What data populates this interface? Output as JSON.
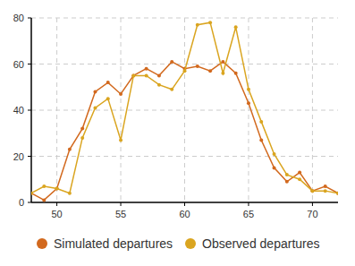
{
  "chart_data": {
    "type": "line",
    "x": [
      48,
      49,
      50,
      51,
      52,
      53,
      54,
      55,
      56,
      57,
      58,
      59,
      60,
      61,
      62,
      63,
      64,
      65,
      66,
      67,
      68,
      69,
      70,
      71,
      72
    ],
    "series": [
      {
        "name": "Simulated departures",
        "color": "#d2691e",
        "marker": "circle",
        "values": [
          4,
          1,
          6,
          23,
          32,
          48,
          52,
          47,
          55,
          58,
          55,
          61,
          58,
          59,
          57,
          61,
          56,
          43,
          27,
          15,
          9,
          13,
          5,
          7,
          4
        ]
      },
      {
        "name": "Observed departures",
        "color": "#daa520",
        "marker": "circle",
        "values": [
          4,
          7,
          6,
          4,
          28,
          41,
          45,
          27,
          55,
          55,
          51,
          49,
          57,
          77,
          78,
          56,
          76,
          49,
          35,
          21,
          12,
          10,
          5,
          5,
          4
        ]
      }
    ],
    "xlim": [
      48,
      72
    ],
    "xticks": [
      50,
      55,
      60,
      65,
      70
    ],
    "ylim": [
      0,
      80
    ],
    "yticks": [
      0,
      20,
      40,
      60,
      80
    ],
    "grid": true,
    "legend": "bottom"
  }
}
